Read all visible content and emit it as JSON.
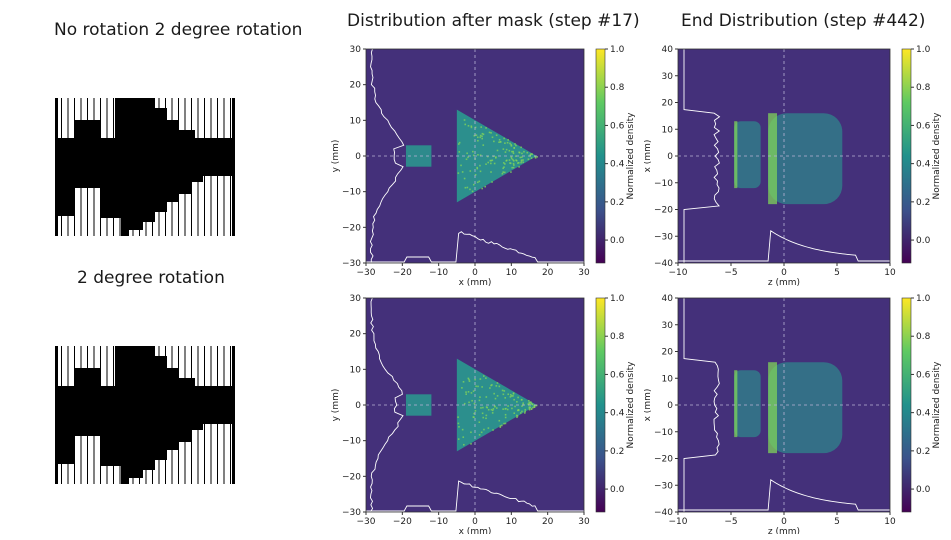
{
  "headings": {
    "left_top": "No rotation 2 degree rotation",
    "left_bottom": "2 degree rotation",
    "mid_title": "Distribution after mask (step #17)",
    "right_title": "End Distribution (step #442)"
  },
  "colors": {
    "background": "#44307a",
    "beam": "#2a9a8f",
    "beam_bright": "#7fd35a",
    "profile": "#ffffff"
  },
  "chart_data": [
    {
      "type": "heatmap",
      "id": "mask-top",
      "title": "",
      "xlabel": "x (mm)",
      "ylabel": "y (mm)",
      "colorbar_label": "Normalized density",
      "xlim": [
        -30,
        30
      ],
      "ylim": [
        -30,
        30
      ],
      "xticks": [
        -30,
        -20,
        -10,
        0,
        10,
        20,
        30
      ],
      "yticks": [
        -30,
        -20,
        -10,
        0,
        10,
        20,
        30
      ],
      "cbar_ticks": [
        0.0,
        0.2,
        0.4,
        0.6,
        0.8,
        1.0
      ],
      "shapes": [
        {
          "kind": "rect",
          "x": [
            -19,
            -12
          ],
          "y": [
            -3,
            3
          ]
        },
        {
          "kind": "triangle",
          "x": [
            -5,
            17
          ],
          "y": [
            -13,
            13
          ]
        }
      ]
    },
    {
      "type": "heatmap",
      "id": "mask-bottom",
      "title": "",
      "xlabel": "x (mm)",
      "ylabel": "y (mm)",
      "colorbar_label": "Normalized density",
      "xlim": [
        -30,
        30
      ],
      "ylim": [
        -30,
        30
      ],
      "xticks": [
        -30,
        -20,
        -10,
        0,
        10,
        20,
        30
      ],
      "yticks": [
        -30,
        -20,
        -10,
        0,
        10,
        20,
        30
      ],
      "cbar_ticks": [
        0.0,
        0.2,
        0.4,
        0.6,
        0.8,
        1.0
      ],
      "shapes": [
        {
          "kind": "rect",
          "x": [
            -19,
            -12
          ],
          "y": [
            -3,
            3
          ]
        },
        {
          "kind": "triangle",
          "x": [
            -5,
            17
          ],
          "y": [
            -13,
            13
          ]
        }
      ]
    },
    {
      "type": "heatmap",
      "id": "end-top",
      "title": "",
      "xlabel": "z (mm)",
      "ylabel": "x (mm)",
      "colorbar_label": "Normalized density",
      "xlim": [
        -10,
        10
      ],
      "ylim": [
        -40,
        40
      ],
      "xticks": [
        -10,
        -5,
        0,
        5,
        10
      ],
      "yticks": [
        -40,
        -30,
        -20,
        -10,
        0,
        10,
        20,
        30,
        40
      ],
      "cbar_ticks": [
        0.0,
        0.2,
        0.4,
        0.6,
        0.8,
        1.0
      ],
      "shapes": [
        {
          "kind": "band",
          "x": [
            -4.7,
            -2.2
          ],
          "y": [
            -12,
            13
          ]
        },
        {
          "kind": "band",
          "x": [
            -1.5,
            5.5
          ],
          "y": [
            -18,
            16
          ]
        }
      ]
    },
    {
      "type": "heatmap",
      "id": "end-bottom",
      "title": "",
      "xlabel": "z (mm)",
      "ylabel": "x (mm)",
      "colorbar_label": "Normalized density",
      "xlim": [
        -10,
        10
      ],
      "ylim": [
        -40,
        40
      ],
      "xticks": [
        -10,
        -5,
        0,
        5,
        10
      ],
      "yticks": [
        -40,
        -30,
        -20,
        -10,
        0,
        10,
        20,
        30,
        40
      ],
      "cbar_ticks": [
        0.0,
        0.2,
        0.4,
        0.6,
        0.8,
        1.0
      ],
      "shapes": [
        {
          "kind": "band",
          "x": [
            -4.7,
            -2.2
          ],
          "y": [
            -12,
            13
          ]
        },
        {
          "kind": "band",
          "x": [
            -1.5,
            5.5
          ],
          "y": [
            -18,
            16
          ]
        }
      ]
    }
  ]
}
